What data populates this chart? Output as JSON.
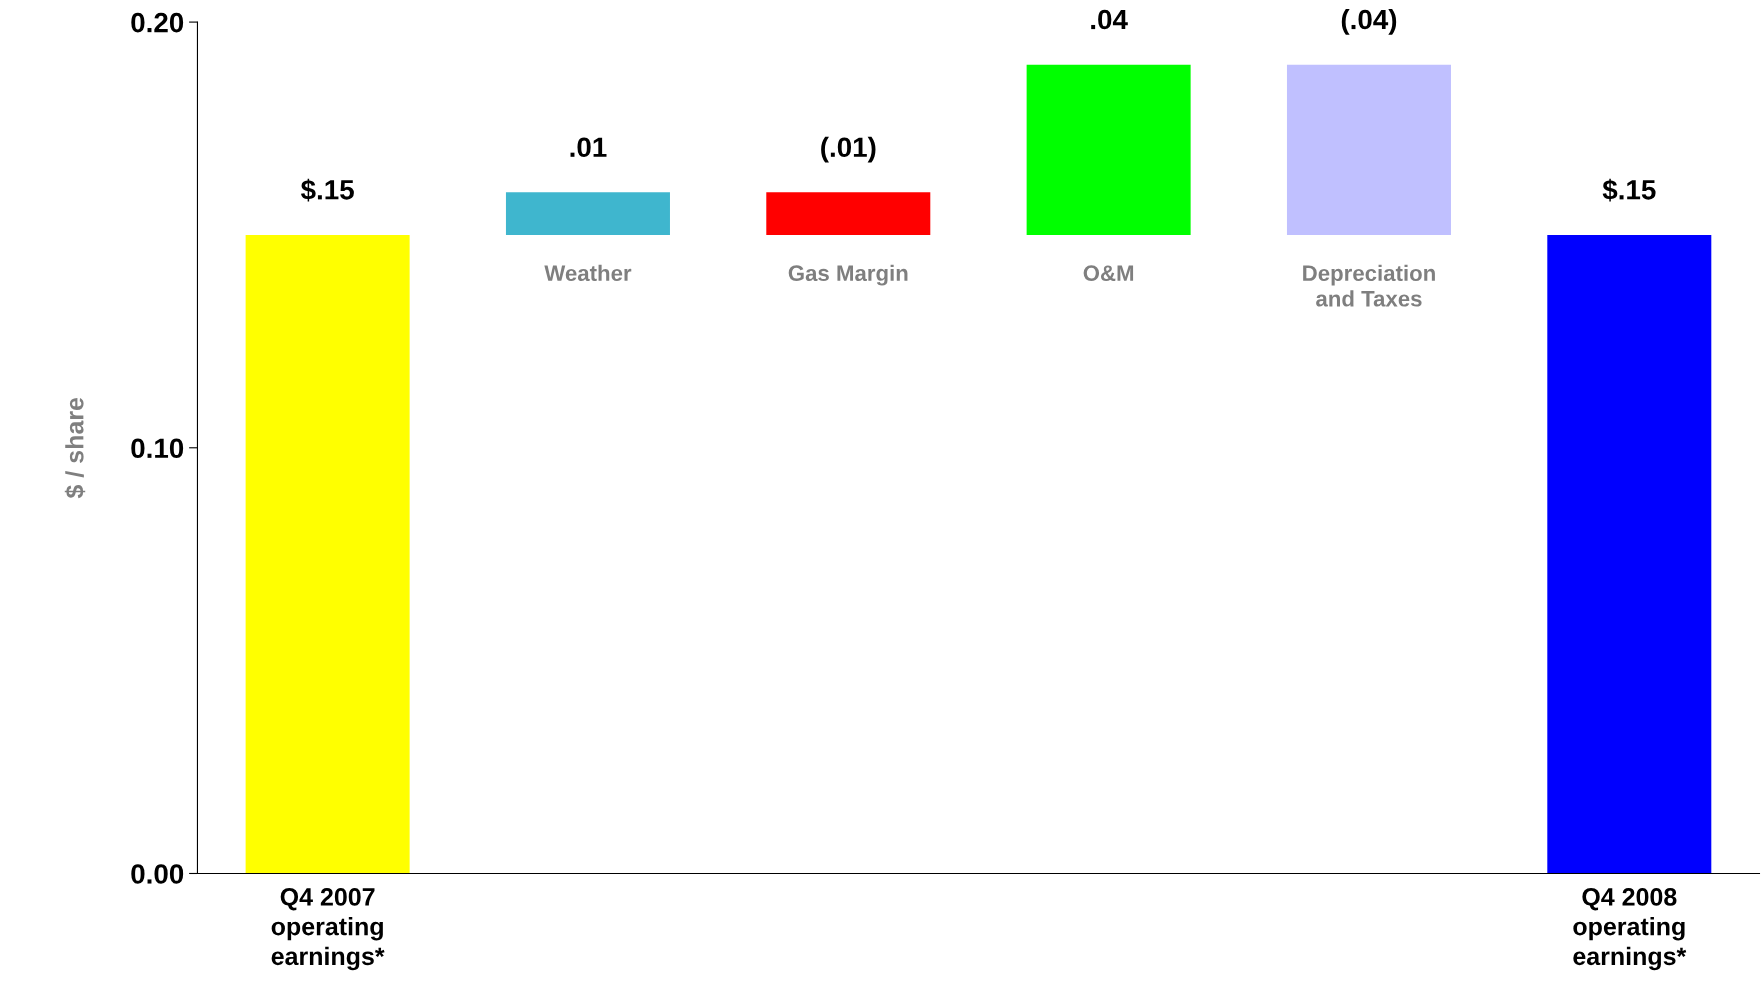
{
  "chart_data": {
    "type": "bar",
    "ylabel": "$ / share",
    "categories": [
      "Q4 2007\noperating\nearnings*",
      "Weather",
      "Gas Margin",
      "O&M",
      "Depreciation\nand Taxes",
      "Q4 2008\noperating\nearnings*"
    ],
    "values": [
      0.15,
      0.01,
      -0.01,
      0.04,
      -0.04,
      0.15
    ],
    "base": [
      0,
      0.15,
      0.16,
      0.15,
      0.19,
      0
    ],
    "colors": [
      "#ffff00",
      "#3fb6ce",
      "#ff0000",
      "#00ff00",
      "#c0c0ff",
      "#0000ff"
    ],
    "value_labels": [
      "$.15",
      ".01",
      "(.01)",
      ".04",
      "(.04)",
      "$.15"
    ],
    "ylim": [
      0,
      0.2
    ],
    "yticks": [
      {
        "value": 0,
        "label": "0.00"
      },
      {
        "value": 0.1,
        "label": "0.10"
      },
      {
        "value": 0.2,
        "label": "0.20"
      }
    ],
    "grid": false,
    "legend": false
  }
}
